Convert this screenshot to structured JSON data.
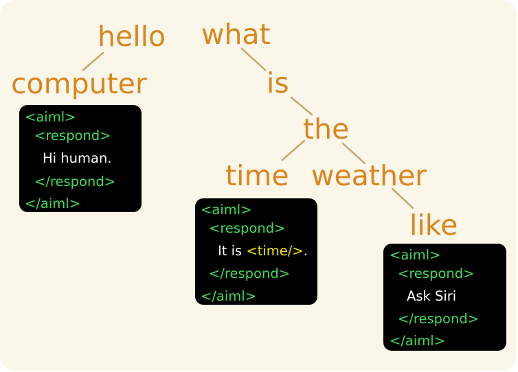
{
  "colors": {
    "background": "#faf6ea",
    "word": "#d9861c",
    "edge": "#c7a56d",
    "box": "#000000",
    "tag": "#3fdc5b",
    "response_text": "#ffffff",
    "template_tag": "#f2e600"
  },
  "words": {
    "hello": "hello",
    "computer": "computer",
    "what": "what",
    "is": "is",
    "the": "the",
    "time": "time",
    "weather": "weather",
    "like": "like"
  },
  "tags": {
    "aiml_open": "<aiml>",
    "respond_open": "<respond>",
    "respond_close": "</respond>",
    "aiml_close": "</aiml>"
  },
  "responses": {
    "hello_computer": "Hi human.",
    "what_is_the_time_before": "It is ",
    "what_is_the_time_tag": "<time/>",
    "what_is_the_time_after": ".",
    "what_is_the_weather_like": "Ask Siri"
  }
}
